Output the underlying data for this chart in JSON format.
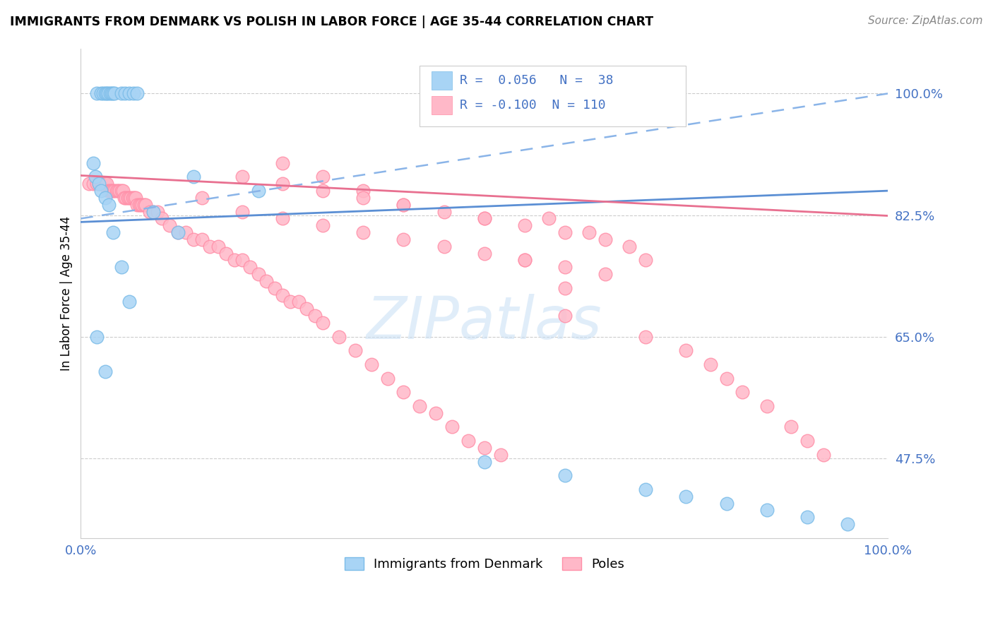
{
  "title": "IMMIGRANTS FROM DENMARK VS POLISH IN LABOR FORCE | AGE 35-44 CORRELATION CHART",
  "source": "Source: ZipAtlas.com",
  "ylabel": "In Labor Force | Age 35-44",
  "legend_labels": [
    "Immigrants from Denmark",
    "Poles"
  ],
  "r_denmark": 0.056,
  "n_denmark": 38,
  "r_polish": -0.1,
  "n_polish": 110,
  "ytick_labels": [
    "47.5%",
    "65.0%",
    "82.5%",
    "100.0%"
  ],
  "ytick_values": [
    0.475,
    0.65,
    0.825,
    1.0
  ],
  "xtick_labels": [
    "0.0%",
    "100.0%"
  ],
  "xlim": [
    0.0,
    1.0
  ],
  "ylim": [
    0.36,
    1.065
  ],
  "color_denmark": "#A8D4F5",
  "color_danish_edge": "#7BBCE8",
  "color_polish": "#FFB8C8",
  "color_polish_edge": "#FF8FA8",
  "color_denmark_trend_solid": "#5B8FD4",
  "color_denmark_trend_dash": "#8AB4E8",
  "color_polish_trend": "#E87090",
  "background_color": "#FFFFFF",
  "dk_x": [
    0.02,
    0.025,
    0.028,
    0.03,
    0.032,
    0.034,
    0.036,
    0.038,
    0.04,
    0.042,
    0.05,
    0.055,
    0.06,
    0.065,
    0.07,
    0.015,
    0.018,
    0.022,
    0.025,
    0.03,
    0.035,
    0.04,
    0.05,
    0.06,
    0.02,
    0.03,
    0.14,
    0.22,
    0.09,
    0.12,
    0.5,
    0.6,
    0.7,
    0.75,
    0.8,
    0.85,
    0.9,
    0.95
  ],
  "dk_y": [
    1.0,
    1.0,
    1.0,
    1.0,
    1.0,
    1.0,
    1.0,
    1.0,
    1.0,
    1.0,
    1.0,
    1.0,
    1.0,
    1.0,
    1.0,
    0.9,
    0.88,
    0.87,
    0.86,
    0.85,
    0.84,
    0.8,
    0.75,
    0.7,
    0.65,
    0.6,
    0.88,
    0.86,
    0.83,
    0.8,
    0.47,
    0.45,
    0.43,
    0.42,
    0.41,
    0.4,
    0.39,
    0.38
  ],
  "pl_x": [
    0.01,
    0.015,
    0.02,
    0.022,
    0.024,
    0.026,
    0.028,
    0.03,
    0.032,
    0.034,
    0.036,
    0.038,
    0.04,
    0.042,
    0.044,
    0.046,
    0.048,
    0.05,
    0.052,
    0.054,
    0.056,
    0.058,
    0.06,
    0.062,
    0.064,
    0.066,
    0.068,
    0.07,
    0.072,
    0.074,
    0.076,
    0.078,
    0.08,
    0.085,
    0.09,
    0.095,
    0.1,
    0.11,
    0.12,
    0.13,
    0.14,
    0.15,
    0.16,
    0.17,
    0.18,
    0.19,
    0.2,
    0.21,
    0.22,
    0.23,
    0.24,
    0.25,
    0.26,
    0.27,
    0.28,
    0.29,
    0.3,
    0.32,
    0.34,
    0.36,
    0.38,
    0.4,
    0.42,
    0.44,
    0.46,
    0.48,
    0.5,
    0.52,
    0.55,
    0.58,
    0.6,
    0.63,
    0.65,
    0.68,
    0.7,
    0.25,
    0.3,
    0.35,
    0.4,
    0.5,
    0.6,
    0.7,
    0.75,
    0.78,
    0.8,
    0.82,
    0.85,
    0.88,
    0.9,
    0.92,
    0.15,
    0.2,
    0.25,
    0.3,
    0.35,
    0.4,
    0.45,
    0.5,
    0.55,
    0.6,
    0.2,
    0.25,
    0.3,
    0.35,
    0.4,
    0.45,
    0.5,
    0.55,
    0.6,
    0.65
  ],
  "pl_y": [
    0.87,
    0.87,
    0.87,
    0.87,
    0.87,
    0.87,
    0.87,
    0.87,
    0.87,
    0.86,
    0.86,
    0.86,
    0.86,
    0.86,
    0.86,
    0.86,
    0.86,
    0.86,
    0.86,
    0.85,
    0.85,
    0.85,
    0.85,
    0.85,
    0.85,
    0.85,
    0.85,
    0.84,
    0.84,
    0.84,
    0.84,
    0.84,
    0.84,
    0.83,
    0.83,
    0.83,
    0.82,
    0.81,
    0.8,
    0.8,
    0.79,
    0.79,
    0.78,
    0.78,
    0.77,
    0.76,
    0.76,
    0.75,
    0.74,
    0.73,
    0.72,
    0.71,
    0.7,
    0.7,
    0.69,
    0.68,
    0.67,
    0.65,
    0.63,
    0.61,
    0.59,
    0.57,
    0.55,
    0.54,
    0.52,
    0.5,
    0.49,
    0.48,
    0.76,
    0.82,
    0.72,
    0.8,
    0.74,
    0.78,
    0.76,
    0.9,
    0.88,
    0.86,
    0.84,
    0.82,
    0.68,
    0.65,
    0.63,
    0.61,
    0.59,
    0.57,
    0.55,
    0.52,
    0.5,
    0.48,
    0.85,
    0.83,
    0.82,
    0.81,
    0.8,
    0.79,
    0.78,
    0.77,
    0.76,
    0.75,
    0.88,
    0.87,
    0.86,
    0.85,
    0.84,
    0.83,
    0.82,
    0.81,
    0.8,
    0.79
  ]
}
